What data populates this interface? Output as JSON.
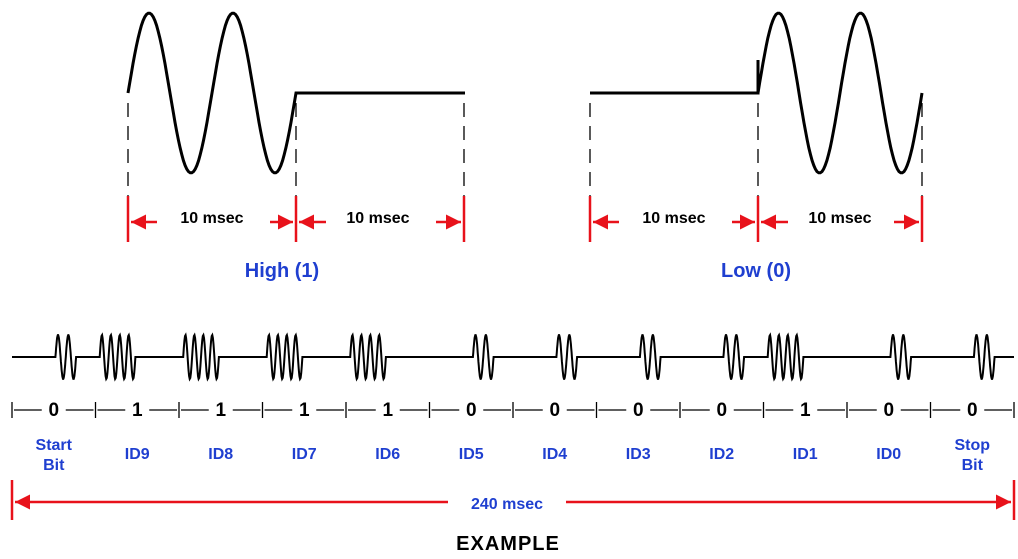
{
  "colors": {
    "wave": "#000000",
    "arrow": "#e8121b",
    "label_blue": "#1f3fd0",
    "text": "#000000"
  },
  "high": {
    "title": "High (1)",
    "first_interval": "10 msec",
    "second_interval": "10 msec"
  },
  "low": {
    "title": "Low (0)",
    "first_interval": "10 msec",
    "second_interval": "10 msec"
  },
  "example": {
    "bits": [
      "0",
      "1",
      "1",
      "1",
      "1",
      "0",
      "0",
      "0",
      "0",
      "1",
      "0",
      "0"
    ],
    "labels": [
      [
        "Start",
        "Bit"
      ],
      [
        "ID9"
      ],
      [
        "ID8"
      ],
      [
        "ID7"
      ],
      [
        "ID6"
      ],
      [
        "ID5"
      ],
      [
        "ID4"
      ],
      [
        "ID3"
      ],
      [
        "ID2"
      ],
      [
        "ID1"
      ],
      [
        "ID0"
      ],
      [
        "Stop",
        "Bit"
      ]
    ],
    "total_duration": "240 msec",
    "caption": "EXAMPLE"
  }
}
